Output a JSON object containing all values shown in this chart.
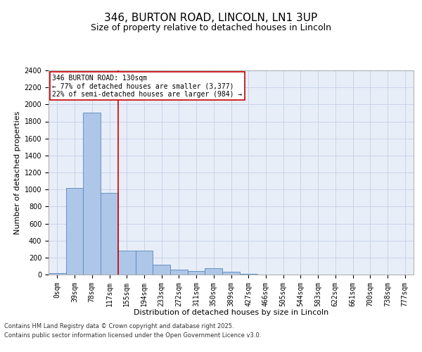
{
  "title_line1": "346, BURTON ROAD, LINCOLN, LN1 3UP",
  "title_line2": "Size of property relative to detached houses in Lincoln",
  "xlabel": "Distribution of detached houses by size in Lincoln",
  "ylabel": "Number of detached properties",
  "categories": [
    "0sqm",
    "39sqm",
    "78sqm",
    "117sqm",
    "155sqm",
    "194sqm",
    "233sqm",
    "272sqm",
    "311sqm",
    "350sqm",
    "389sqm",
    "427sqm",
    "466sqm",
    "505sqm",
    "544sqm",
    "583sqm",
    "622sqm",
    "661sqm",
    "700sqm",
    "738sqm",
    "777sqm"
  ],
  "values": [
    15,
    1020,
    1900,
    960,
    280,
    280,
    115,
    60,
    40,
    75,
    30,
    5,
    0,
    0,
    0,
    0,
    0,
    0,
    0,
    0,
    0
  ],
  "bar_color": "#aec6e8",
  "bar_edge_color": "#5588bb",
  "grid_color": "#c8d4e8",
  "background_color": "#e8eef8",
  "red_line_x": 3.5,
  "annotation_text": "346 BURTON ROAD: 130sqm\n← 77% of detached houses are smaller (3,377)\n22% of semi-detached houses are larger (984) →",
  "annotation_box_color": "#ffffff",
  "annotation_box_edge": "#cc0000",
  "annotation_text_color": "#000000",
  "ylim": [
    0,
    2400
  ],
  "yticks": [
    0,
    200,
    400,
    600,
    800,
    1000,
    1200,
    1400,
    1600,
    1800,
    2000,
    2200,
    2400
  ],
  "footer_line1": "Contains HM Land Registry data © Crown copyright and database right 2025.",
  "footer_line2": "Contains public sector information licensed under the Open Government Licence v3.0.",
  "title_fontsize": 11,
  "subtitle_fontsize": 9,
  "axis_label_fontsize": 8,
  "tick_fontsize": 7,
  "annotation_fontsize": 7,
  "footer_fontsize": 6
}
